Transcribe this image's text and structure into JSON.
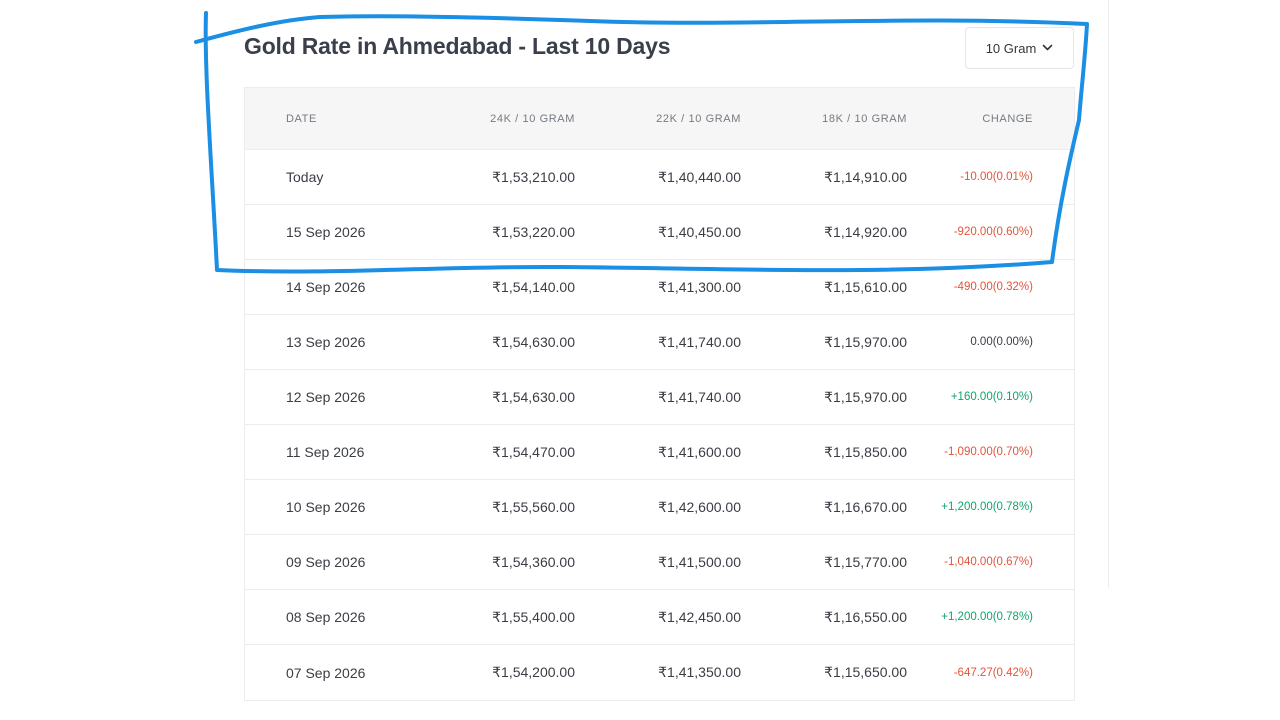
{
  "title": "Gold Rate in Ahmedabad - Last 10 Days",
  "unit_selector": {
    "value": "10 Gram",
    "icon": "chevron-down-icon"
  },
  "table": {
    "headers": [
      "DATE",
      "24K / 10 GRAM",
      "22K / 10 GRAM",
      "18K / 10 GRAM",
      "CHANGE"
    ],
    "rows": [
      {
        "date": "Today",
        "k24": "₹1,53,210.00",
        "k22": "₹1,40,440.00",
        "k18": "₹1,14,910.00",
        "change": "-10.00(0.01%)",
        "direction": "neg"
      },
      {
        "date": "15 Sep 2026",
        "k24": "₹1,53,220.00",
        "k22": "₹1,40,450.00",
        "k18": "₹1,14,920.00",
        "change": "-920.00(0.60%)",
        "direction": "neg"
      },
      {
        "date": "14 Sep 2026",
        "k24": "₹1,54,140.00",
        "k22": "₹1,41,300.00",
        "k18": "₹1,15,610.00",
        "change": "-490.00(0.32%)",
        "direction": "neg"
      },
      {
        "date": "13 Sep 2026",
        "k24": "₹1,54,630.00",
        "k22": "₹1,41,740.00",
        "k18": "₹1,15,970.00",
        "change": "0.00(0.00%)",
        "direction": "zero"
      },
      {
        "date": "12 Sep 2026",
        "k24": "₹1,54,630.00",
        "k22": "₹1,41,740.00",
        "k18": "₹1,15,970.00",
        "change": "+160.00(0.10%)",
        "direction": "pos"
      },
      {
        "date": "11 Sep 2026",
        "k24": "₹1,54,470.00",
        "k22": "₹1,41,600.00",
        "k18": "₹1,15,850.00",
        "change": "-1,090.00(0.70%)",
        "direction": "neg"
      },
      {
        "date": "10 Sep 2026",
        "k24": "₹1,55,560.00",
        "k22": "₹1,42,600.00",
        "k18": "₹1,16,670.00",
        "change": "+1,200.00(0.78%)",
        "direction": "pos"
      },
      {
        "date": "09 Sep 2026",
        "k24": "₹1,54,360.00",
        "k22": "₹1,41,500.00",
        "k18": "₹1,15,770.00",
        "change": "-1,040.00(0.67%)",
        "direction": "neg"
      },
      {
        "date": "08 Sep 2026",
        "k24": "₹1,55,400.00",
        "k22": "₹1,42,450.00",
        "k18": "₹1,16,550.00",
        "change": "+1,200.00(0.78%)",
        "direction": "pos"
      },
      {
        "date": "07 Sep 2026",
        "k24": "₹1,54,200.00",
        "k22": "₹1,41,350.00",
        "k18": "₹1,15,650.00",
        "change": "-647.27(0.42%)",
        "direction": "neg"
      }
    ]
  },
  "colors": {
    "negative": "#e2553c",
    "positive": "#12a56b",
    "annotation_stroke": "#1a8fe3"
  },
  "annotation": {
    "type": "hand-drawn-outline",
    "icon": "highlight-outline-icon"
  }
}
